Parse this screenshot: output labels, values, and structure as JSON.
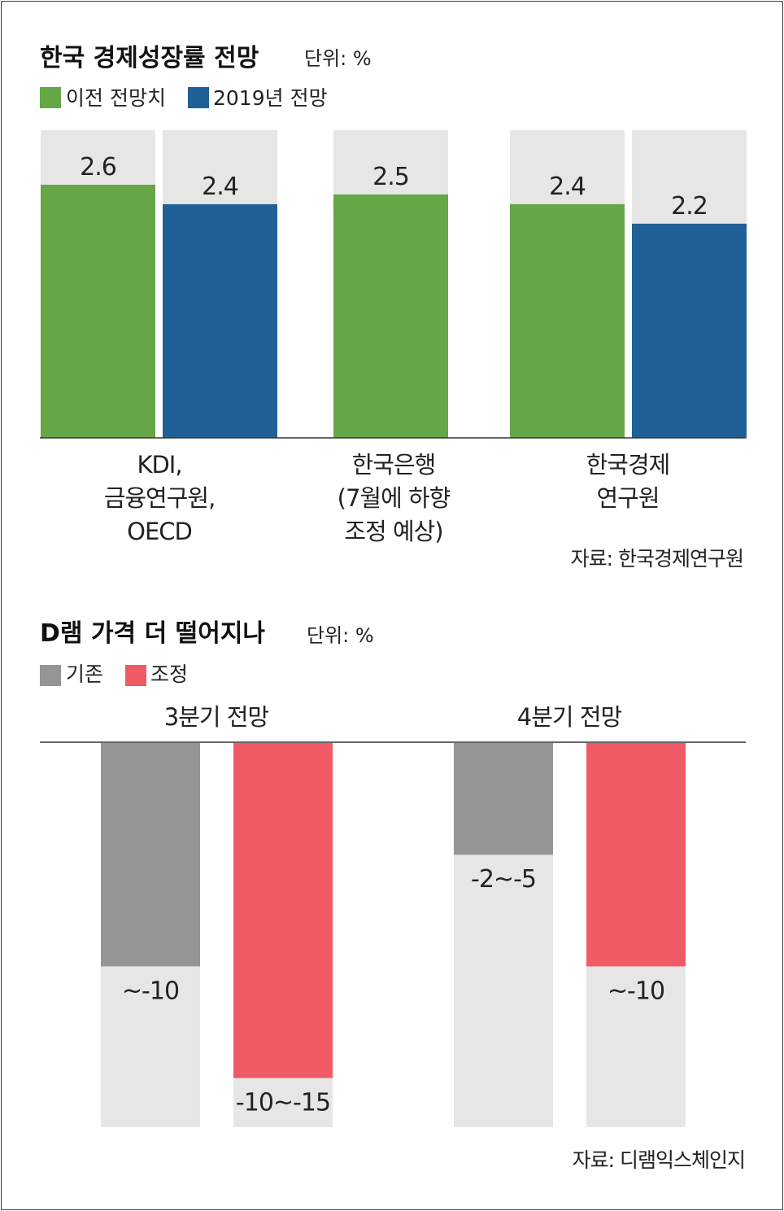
{
  "chart_data": [
    {
      "type": "bar",
      "title": "한국 경제성장률 전망",
      "unit": "단위: %",
      "legend": [
        {
          "name": "이전 전망치",
          "color": "#65a646"
        },
        {
          "name": "2019년 전망",
          "color": "#1f6096"
        }
      ],
      "ylim": [
        0,
        3.16
      ],
      "groups": [
        {
          "category": [
            "KDI,",
            "금융연구원,",
            "OECD"
          ],
          "bars": [
            {
              "series": "이전 전망치",
              "value": 2.6,
              "label": "2.6"
            },
            {
              "series": "2019년 전망",
              "value": 2.4,
              "label": "2.4"
            }
          ]
        },
        {
          "category": [
            "한국은행",
            "(7월에 하향",
            "조정 예상)"
          ],
          "bars": [
            {
              "series": "이전 전망치",
              "value": 2.5,
              "label": "2.5"
            }
          ]
        },
        {
          "category": [
            "한국경제",
            "연구원"
          ],
          "bars": [
            {
              "series": "이전 전망치",
              "value": 2.4,
              "label": "2.4"
            },
            {
              "series": "2019년 전망",
              "value": 2.2,
              "label": "2.2"
            }
          ]
        }
      ],
      "source": "자료: 한국경제연구원"
    },
    {
      "type": "bar",
      "title": "D램 가격 더 떨어지나",
      "unit": "단위: %",
      "legend": [
        {
          "name": "기존",
          "color": "#959597"
        },
        {
          "name": "조정",
          "color": "#ef5a64"
        }
      ],
      "ylim": [
        -17.2,
        0
      ],
      "groups": [
        {
          "category": "3분기 전망",
          "bars": [
            {
              "series": "기존",
              "value": -10,
              "label": "~-10"
            },
            {
              "series": "조정",
              "value": -15,
              "label": "-10~-15"
            }
          ]
        },
        {
          "category": "4분기 전망",
          "bars": [
            {
              "series": "기존",
              "value": -5,
              "label": "-2~-5"
            },
            {
              "series": "조정",
              "value": -10,
              "label": "~-10"
            }
          ]
        }
      ],
      "source": "자료: 디램익스체인지"
    }
  ],
  "colors": {
    "background_bar": "#e6e6e7",
    "axis": "#333333"
  }
}
